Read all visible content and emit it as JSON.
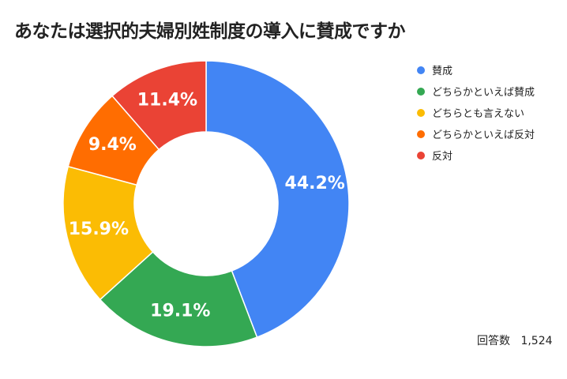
{
  "chart_data": {
    "type": "pie",
    "title": "あなたは選択的夫婦別姓制度の導入に賛成ですか",
    "donut": true,
    "legend_position": "right",
    "categories": [
      "賛成",
      "どちらかといえば賛成",
      "どちらとも言えない",
      "どちらかといえば反対",
      "反対"
    ],
    "values": [
      44.2,
      19.1,
      15.9,
      9.4,
      11.4
    ],
    "labels": [
      "44.2%",
      "19.1%",
      "15.9%",
      "9.4%",
      "11.4%"
    ],
    "colors": [
      "#4285F4",
      "#34A853",
      "#FBBC04",
      "#FF6D01",
      "#EA4335"
    ]
  },
  "footnote": {
    "label": "回答数",
    "value": "1,524"
  }
}
